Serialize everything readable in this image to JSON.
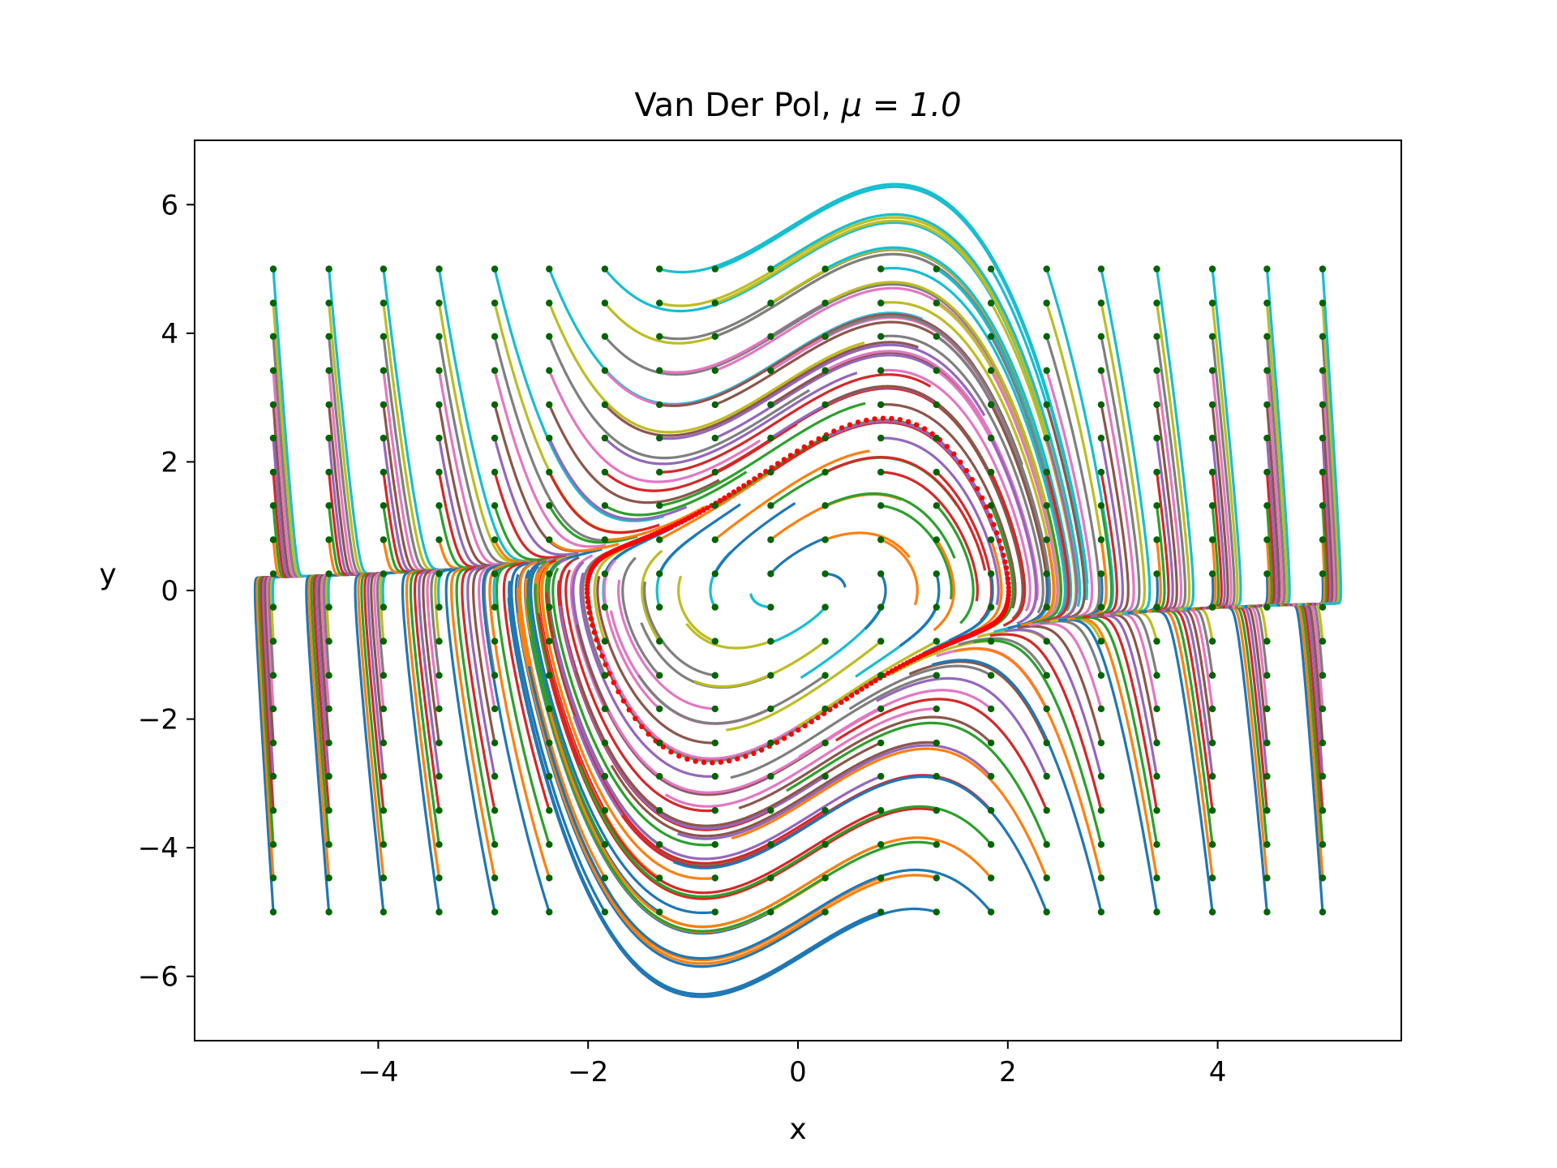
{
  "chart_data": {
    "type": "line",
    "title": "Van Der Pol, ",
    "title_math": "μ = 1.0",
    "xlabel": "x",
    "ylabel": "y",
    "mu": 1.0,
    "xlim": [
      -5.75,
      5.75
    ],
    "ylim": [
      -7,
      7
    ],
    "xticks": [
      -4,
      -2,
      0,
      2,
      4
    ],
    "yticks": [
      -6,
      -4,
      -2,
      0,
      2,
      4,
      6
    ],
    "xtick_labels": [
      "−4",
      "−2",
      "0",
      "2",
      "4"
    ],
    "ytick_labels": [
      "−6",
      "−4",
      "−2",
      "0",
      "2",
      "4",
      "6"
    ],
    "grid": false,
    "legend": "none",
    "initial_conditions": {
      "x": [
        -5.0,
        -4.47,
        -3.95,
        -3.42,
        -2.89,
        -2.37,
        -1.84,
        -1.32,
        -0.79,
        -0.26,
        0.26,
        0.79,
        1.32,
        1.84,
        2.37,
        2.89,
        3.42,
        3.95,
        4.47,
        5.0
      ],
      "y": [
        -5.0,
        -4.47,
        -3.95,
        -3.42,
        -2.89,
        -2.37,
        -1.84,
        -1.32,
        -0.79,
        -0.26,
        0.26,
        0.79,
        1.32,
        1.84,
        2.37,
        2.89,
        3.42,
        3.95,
        4.47,
        5.0
      ],
      "marker_color": "#006400"
    },
    "trajectory_time_span": 1.0,
    "limit_cycle": {
      "amplitude_x": 2.0,
      "max_y": 2.7,
      "marker_color": "#ff0000"
    },
    "series_colors": [
      "#1f77b4",
      "#ff7f0e",
      "#2ca02c",
      "#d62728",
      "#9467bd",
      "#8c564b",
      "#e377c2",
      "#7f7f7f",
      "#bcbd22",
      "#17becf"
    ]
  }
}
